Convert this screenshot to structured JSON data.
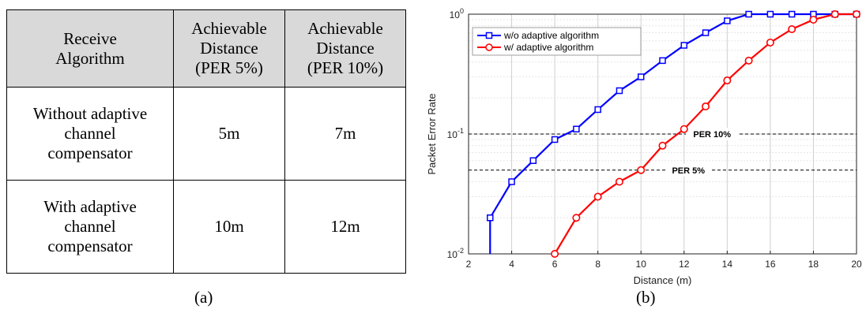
{
  "table": {
    "headers": [
      "Receive\nAlgorithm",
      "Achievable\nDistance\n(PER 5%)",
      "Achievable\nDistance\n(PER 10%)"
    ],
    "rows": [
      [
        "Without adaptive\nchannel\ncompensator",
        "5m",
        "7m"
      ],
      [
        "With adaptive\nchannel\ncompensator",
        "10m",
        "12m"
      ]
    ]
  },
  "labels": {
    "a": "(a)",
    "b": "(b)"
  },
  "chart_data": {
    "type": "line",
    "title": "",
    "xlabel": "Distance (m)",
    "ylabel": "Packet Error Rate",
    "xlim": [
      2,
      20
    ],
    "ylim": [
      0.01,
      1
    ],
    "yscale": "log",
    "grid": true,
    "legend": "top-left",
    "xticks": [
      "2",
      "4",
      "6",
      "8",
      "10",
      "12",
      "14",
      "16",
      "18",
      "20"
    ],
    "yticks": [
      {
        "value": 1,
        "base": "10",
        "exp": "0"
      },
      {
        "value": 0.1,
        "base": "10",
        "exp": "-1"
      },
      {
        "value": 0.01,
        "base": "10",
        "exp": "-2"
      }
    ],
    "series": [
      {
        "name": "w/o adaptive algorithm",
        "color": "#0000ff",
        "marker": "square",
        "x": [
          3,
          4,
          5,
          6,
          7,
          8,
          9,
          10,
          11,
          12,
          13,
          14,
          15,
          16,
          17,
          18,
          19,
          20
        ],
        "y": [
          0.02,
          0.04,
          0.06,
          0.09,
          0.11,
          0.16,
          0.23,
          0.3,
          0.41,
          0.55,
          0.7,
          0.88,
          1.0,
          1.0,
          1.0,
          1.0,
          1.0,
          1.0
        ]
      },
      {
        "name": "w/ adaptive algorithm",
        "color": "#ff0000",
        "marker": "circle",
        "x": [
          6,
          7,
          8,
          9,
          10,
          11,
          12,
          13,
          14,
          15,
          16,
          17,
          18,
          19,
          20
        ],
        "y": [
          0.01,
          0.02,
          0.03,
          0.04,
          0.05,
          0.08,
          0.11,
          0.17,
          0.28,
          0.41,
          0.58,
          0.75,
          0.9,
          1.0,
          1.0
        ]
      }
    ],
    "reference_lines": [
      {
        "label": "PER 10%",
        "y": 0.1
      },
      {
        "label": "PER 5%",
        "y": 0.05
      }
    ]
  }
}
